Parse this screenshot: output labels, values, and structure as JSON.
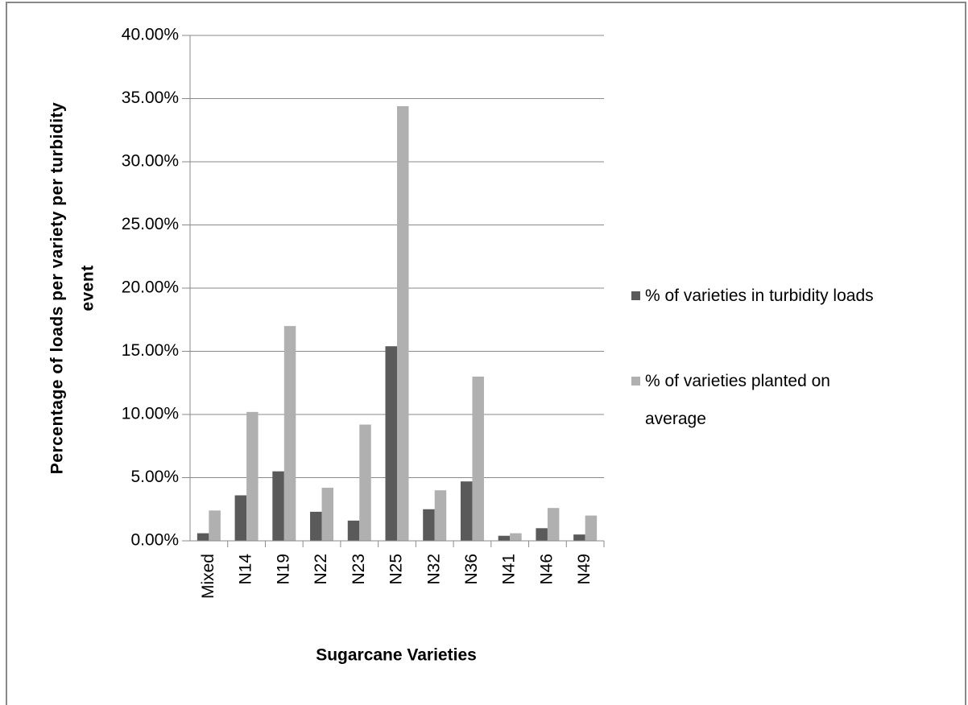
{
  "chart_data": {
    "type": "bar",
    "x_label": "Sugarcane Varieties",
    "y_label": [
      "Percentage of loads per variety per turbidity",
      "event"
    ],
    "categories": [
      "Mixed",
      "N14",
      "N19",
      "N22",
      "N23",
      "N25",
      "N32",
      "N36",
      "N41",
      "N46",
      "N49"
    ],
    "series": [
      {
        "name": "% of varieties in turbidity loads",
        "color": "#5a5a5a",
        "values": [
          0.6,
          3.6,
          5.5,
          2.3,
          1.6,
          15.4,
          2.5,
          4.7,
          0.4,
          1.0,
          0.5
        ]
      },
      {
        "name": "% of varieties planted on average",
        "color": "#b0b0b0",
        "values": [
          2.4,
          10.2,
          17.0,
          4.2,
          9.2,
          34.4,
          4.0,
          13.0,
          0.6,
          2.6,
          2.0
        ]
      }
    ],
    "ylim": [
      0,
      40
    ],
    "yticks": [
      {
        "value": 0,
        "label": "0.00%"
      },
      {
        "value": 5,
        "label": "5.00%"
      },
      {
        "value": 10,
        "label": "10.00%"
      },
      {
        "value": 15,
        "label": "15.00%"
      },
      {
        "value": 20,
        "label": "20.00%"
      },
      {
        "value": 25,
        "label": "25.00%"
      },
      {
        "value": 30,
        "label": "30.00%"
      },
      {
        "value": 35,
        "label": "35.00%"
      },
      {
        "value": 40,
        "label": "40.00%"
      }
    ],
    "grid": true,
    "legend": "right"
  }
}
